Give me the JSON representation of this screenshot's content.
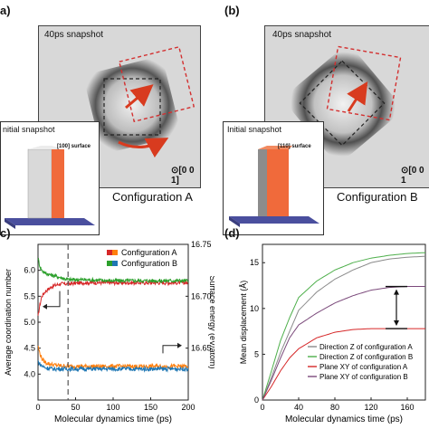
{
  "panel_a": {
    "label": "a)",
    "snapshot_title": "40ps snapshot",
    "inset_title": "nitial snapshot",
    "surface_label": "[100] surface",
    "axis_label": "[0 0 1]",
    "configuration": "Configuration A"
  },
  "panel_b": {
    "label": "(b)",
    "snapshot_title": "40ps snapshot",
    "inset_title": "Initial snapshot",
    "surface_label": "[110] surface",
    "axis_label": "[0 0 1",
    "configuration": "Configuration B"
  },
  "chart_data": [
    {
      "panel": "c)",
      "type": "line",
      "xlabel": "Molecular dynamics time (ps)",
      "ylabel_left": "Average coordination number",
      "ylabel_right": "Surface energy (eV/atom)",
      "xlim": [
        0,
        200
      ],
      "ylim_left": [
        3.5,
        6.5
      ],
      "ylim_right": [
        16.6,
        16.75
      ],
      "x_ticks": [
        0,
        50,
        100,
        150,
        200
      ],
      "y_ticks_left": [
        4.0,
        4.5,
        5.0,
        5.5,
        6.0
      ],
      "y_ticks_right": [
        16.65,
        16.7,
        16.75
      ],
      "dashed_vline_x": 40,
      "legend": [
        "Configuration A",
        "Configuration B"
      ],
      "legend_colors": {
        "Configuration A": [
          "#d62728",
          "#ff7f0e"
        ],
        "Configuration B": [
          "#2ca02c",
          "#1f77b4"
        ]
      },
      "series": [
        {
          "name": "Configuration A",
          "axis": "right",
          "color": "#d62728",
          "x": [
            0,
            2,
            5,
            10,
            20,
            30,
            40,
            60,
            100,
            150,
            200
          ],
          "values": [
            16.68,
            16.69,
            16.7,
            16.705,
            16.71,
            16.712,
            16.712,
            16.713,
            16.713,
            16.713,
            16.713
          ]
        },
        {
          "name": "Configuration B",
          "axis": "right",
          "color": "#2ca02c",
          "x": [
            0,
            2,
            5,
            10,
            20,
            30,
            40,
            60,
            100,
            150,
            200
          ],
          "values": [
            16.737,
            16.73,
            16.725,
            16.722,
            16.72,
            16.718,
            16.716,
            16.716,
            16.715,
            16.715,
            16.715
          ]
        },
        {
          "name": "Configuration A",
          "axis": "left",
          "color": "#ff7f0e",
          "x": [
            0,
            2,
            5,
            10,
            20,
            30,
            40,
            60,
            100,
            150,
            200
          ],
          "values": [
            4.55,
            4.42,
            4.3,
            4.22,
            4.18,
            4.16,
            4.15,
            4.15,
            4.15,
            4.15,
            4.15
          ]
        },
        {
          "name": "Configuration B",
          "axis": "left",
          "color": "#1f77b4",
          "x": [
            0,
            2,
            5,
            10,
            20,
            30,
            40,
            60,
            100,
            150,
            200
          ],
          "values": [
            4.25,
            4.2,
            4.16,
            4.12,
            4.1,
            4.1,
            4.1,
            4.1,
            4.1,
            4.1,
            4.1
          ]
        }
      ]
    },
    {
      "panel": "(d)",
      "type": "line",
      "xlabel": "Molecular dynamics time (ps)",
      "ylabel": "Mean displacement (Å)",
      "xlim": [
        0,
        180
      ],
      "ylim": [
        0,
        17
      ],
      "x_ticks": [
        0,
        40,
        80,
        120,
        160
      ],
      "y_ticks": [
        0,
        5,
        10,
        15
      ],
      "legend": [
        "Direction Z of configuration A",
        "Direction Z of configuration B",
        "Plane XY of  configuration A",
        "Plane XY of configuration B"
      ],
      "series": [
        {
          "name": "Direction Z of configuration A",
          "color": "#8a8a8a",
          "x": [
            0,
            10,
            20,
            30,
            40,
            60,
            80,
            100,
            120,
            140,
            160,
            180
          ],
          "values": [
            0,
            2.5,
            5.2,
            7.5,
            9.8,
            11.8,
            13.2,
            14.2,
            15.0,
            15.4,
            15.6,
            15.7
          ]
        },
        {
          "name": "Direction Z of configuration B",
          "color": "#4daf4a",
          "x": [
            0,
            10,
            20,
            30,
            40,
            60,
            80,
            100,
            120,
            140,
            160,
            180
          ],
          "values": [
            0,
            3.2,
            6.5,
            9.0,
            11.2,
            13.0,
            14.2,
            15.0,
            15.5,
            15.8,
            16.0,
            16.1
          ]
        },
        {
          "name": "Plane XY of  configuration A",
          "color": "#d62728",
          "x": [
            0,
            10,
            20,
            30,
            40,
            60,
            80,
            100,
            120,
            140,
            160,
            180
          ],
          "values": [
            0,
            1.5,
            3.2,
            4.6,
            5.6,
            6.8,
            7.4,
            7.7,
            7.8,
            7.8,
            7.8,
            7.8
          ]
        },
        {
          "name": "Plane XY of configuration B",
          "color": "#7b4a7b",
          "x": [
            0,
            10,
            20,
            30,
            40,
            60,
            80,
            100,
            120,
            140,
            160,
            180
          ],
          "values": [
            0,
            2.2,
            4.6,
            6.8,
            8.2,
            9.5,
            10.6,
            11.4,
            12.0,
            12.3,
            12.4,
            12.4
          ]
        }
      ]
    }
  ]
}
